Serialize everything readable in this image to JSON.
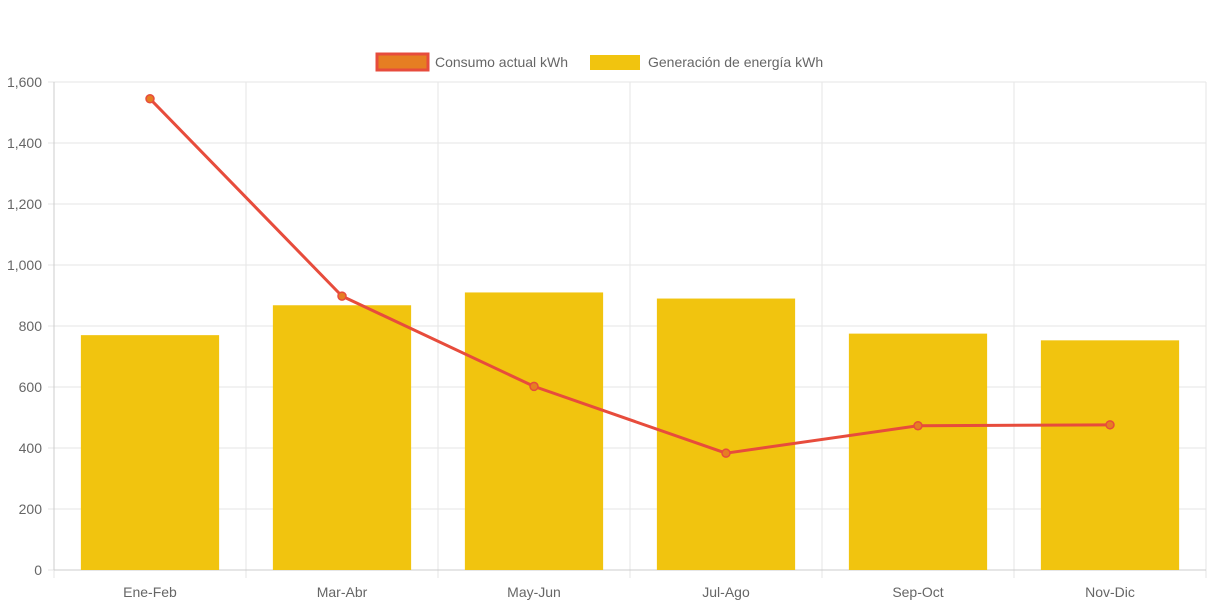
{
  "chart_data": {
    "type": "bar",
    "categories": [
      "Ene-Feb",
      "Mar-Abr",
      "May-Jun",
      "Jul-Ago",
      "Sep-Oct",
      "Nov-Dic"
    ],
    "series": [
      {
        "name": "Consumo actual kWh",
        "type": "line",
        "values": [
          1545,
          898,
          602,
          383,
          473,
          476
        ],
        "color": "#e74c3c",
        "point_color": "#e67e22"
      },
      {
        "name": "Generación de energía kWh",
        "type": "bar",
        "values": [
          770,
          868,
          910,
          890,
          775,
          753
        ],
        "color": "#f1c40f"
      }
    ],
    "y_ticks": [
      "0",
      "200",
      "400",
      "600",
      "800",
      "1,000",
      "1,200",
      "1,400",
      "1,600"
    ],
    "ylim": [
      0,
      1600
    ],
    "grid": true,
    "legend_position": "top-center"
  }
}
